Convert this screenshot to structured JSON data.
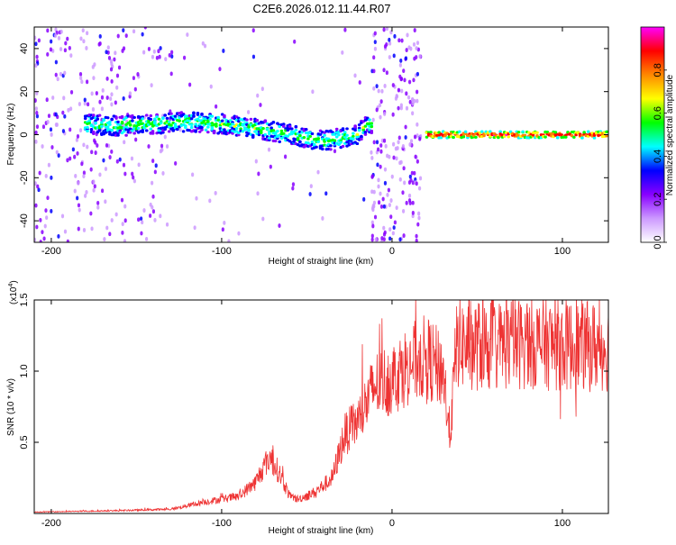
{
  "title": "C2E6.2026.012.11.44.R07",
  "chart_data": [
    {
      "type": "heatmap",
      "title": "C2E6.2026.012.11.44.R07",
      "xlabel": "Height of straight line (km)",
      "ylabel": "Frequency (Hz)",
      "xlim": [
        -210,
        127
      ],
      "ylim": [
        -50,
        50
      ],
      "x_ticks": [
        -200,
        -100,
        0,
        100
      ],
      "y_ticks": [
        -40,
        -20,
        0,
        20,
        40
      ],
      "colorbar": {
        "label": "Normalized spectral amplitude",
        "range": [
          0,
          1
        ],
        "ticks": [
          "0.0",
          "0.2",
          "0.4",
          "0.6",
          "0.8"
        ],
        "colors": [
          "#ffffff",
          "#cc99ff",
          "#8800ff",
          "#0000ff",
          "#00ffff",
          "#00ff00",
          "#ffff00",
          "#ff8800",
          "#ff0000",
          "#ff00ff"
        ]
      },
      "ridge": {
        "x": [
          -180,
          -160,
          -140,
          -120,
          -100,
          -80,
          -60,
          -40,
          -20,
          -15,
          20,
          40,
          60,
          80,
          100,
          127
        ],
        "y": [
          5,
          4,
          5,
          6,
          5,
          3,
          0,
          -3,
          0,
          5,
          0,
          0,
          0,
          0,
          0,
          0
        ]
      },
      "gap": [
        -12,
        17
      ],
      "grid": false
    },
    {
      "type": "line",
      "xlabel": "Height of straight line (km)",
      "ylabel": "SNR (10 * v/v)",
      "scale_label": "(x10",
      "scale_exp": "4",
      "scale_close": ")",
      "xlim": [
        -210,
        127
      ],
      "ylim": [
        0,
        1.5
      ],
      "x_ticks": [
        -200,
        -100,
        0,
        100
      ],
      "y_ticks": [
        "0.5",
        "1.0",
        "1.5"
      ],
      "color": "#ee3333",
      "envelope": {
        "x": [
          -210,
          -160,
          -130,
          -110,
          -90,
          -80,
          -72,
          -66,
          -60,
          -55,
          -45,
          -35,
          -28,
          -20,
          -10,
          0,
          10,
          20,
          30,
          34,
          38,
          45,
          60,
          80,
          100,
          127
        ],
        "y": [
          0.01,
          0.02,
          0.03,
          0.08,
          0.12,
          0.22,
          0.4,
          0.28,
          0.12,
          0.1,
          0.15,
          0.25,
          0.55,
          0.65,
          0.9,
          0.95,
          1.05,
          1.1,
          1.0,
          0.55,
          1.2,
          1.18,
          1.18,
          1.2,
          1.18,
          1.17
        ]
      },
      "grid": false
    }
  ]
}
